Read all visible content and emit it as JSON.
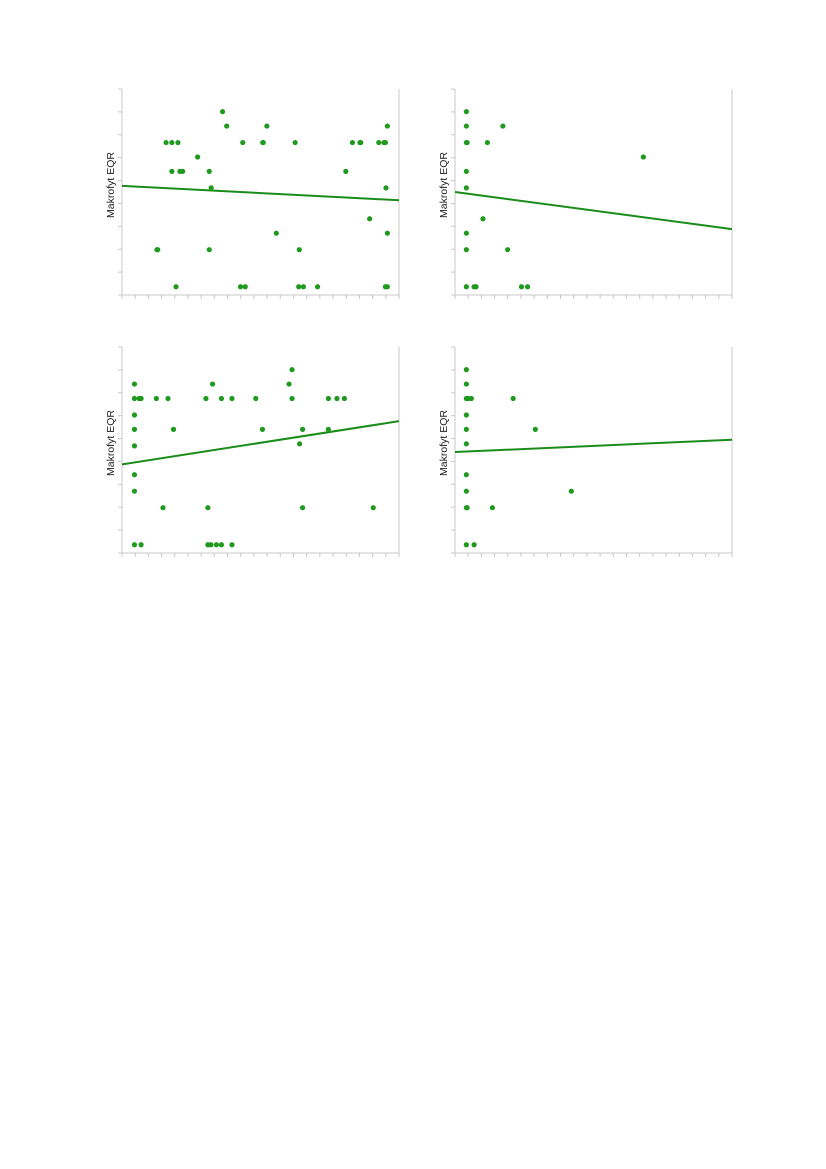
{
  "colors": {
    "points": "#1f9a1f",
    "trend": "#1a8c1a",
    "axis": "#c8c8c8"
  },
  "chart_data": [
    {
      "type": "scatter",
      "ylabel": "Makrofyt EQR",
      "xlim": [
        0,
        1
      ],
      "ylim": [
        0,
        1
      ],
      "points": [
        {
          "x": 0.126,
          "y": 0.22
        },
        {
          "x": 0.129,
          "y": 0.22
        },
        {
          "x": 0.159,
          "y": 0.74
        },
        {
          "x": 0.18,
          "y": 0.74
        },
        {
          "x": 0.202,
          "y": 0.74
        },
        {
          "x": 0.18,
          "y": 0.6
        },
        {
          "x": 0.209,
          "y": 0.6
        },
        {
          "x": 0.219,
          "y": 0.6
        },
        {
          "x": 0.195,
          "y": 0.04
        },
        {
          "x": 0.273,
          "y": 0.67
        },
        {
          "x": 0.315,
          "y": 0.6
        },
        {
          "x": 0.322,
          "y": 0.52
        },
        {
          "x": 0.315,
          "y": 0.22
        },
        {
          "x": 0.363,
          "y": 0.89
        },
        {
          "x": 0.378,
          "y": 0.82
        },
        {
          "x": 0.436,
          "y": 0.74
        },
        {
          "x": 0.508,
          "y": 0.74
        },
        {
          "x": 0.51,
          "y": 0.74
        },
        {
          "x": 0.523,
          "y": 0.82
        },
        {
          "x": 0.428,
          "y": 0.04
        },
        {
          "x": 0.445,
          "y": 0.04
        },
        {
          "x": 0.557,
          "y": 0.3
        },
        {
          "x": 0.625,
          "y": 0.74
        },
        {
          "x": 0.64,
          "y": 0.22
        },
        {
          "x": 0.638,
          "y": 0.04
        },
        {
          "x": 0.655,
          "y": 0.04
        },
        {
          "x": 0.706,
          "y": 0.04
        },
        {
          "x": 0.808,
          "y": 0.6
        },
        {
          "x": 0.832,
          "y": 0.74
        },
        {
          "x": 0.859,
          "y": 0.74
        },
        {
          "x": 0.862,
          "y": 0.74
        },
        {
          "x": 0.894,
          "y": 0.37
        },
        {
          "x": 0.927,
          "y": 0.74
        },
        {
          "x": 0.946,
          "y": 0.74
        },
        {
          "x": 0.951,
          "y": 0.74
        },
        {
          "x": 0.958,
          "y": 0.82
        },
        {
          "x": 0.953,
          "y": 0.52
        },
        {
          "x": 0.958,
          "y": 0.3
        },
        {
          "x": 0.951,
          "y": 0.04
        },
        {
          "x": 0.958,
          "y": 0.04
        }
      ],
      "trendline": {
        "x": [
          0,
          1
        ],
        "y": [
          0.53,
          0.46
        ]
      }
    },
    {
      "type": "scatter",
      "ylabel": "Makrofyt EQR",
      "xlim": [
        0,
        1
      ],
      "ylim": [
        0,
        1
      ],
      "points": [
        {
          "x": 0.041,
          "y": 0.89
        },
        {
          "x": 0.041,
          "y": 0.82
        },
        {
          "x": 0.041,
          "y": 0.74
        },
        {
          "x": 0.044,
          "y": 0.74
        },
        {
          "x": 0.041,
          "y": 0.6
        },
        {
          "x": 0.041,
          "y": 0.52
        },
        {
          "x": 0.041,
          "y": 0.3
        },
        {
          "x": 0.041,
          "y": 0.22
        },
        {
          "x": 0.041,
          "y": 0.04
        },
        {
          "x": 0.069,
          "y": 0.04
        },
        {
          "x": 0.076,
          "y": 0.04
        },
        {
          "x": 0.101,
          "y": 0.37
        },
        {
          "x": 0.117,
          "y": 0.74
        },
        {
          "x": 0.173,
          "y": 0.82
        },
        {
          "x": 0.19,
          "y": 0.22
        },
        {
          "x": 0.24,
          "y": 0.04
        },
        {
          "x": 0.262,
          "y": 0.04
        },
        {
          "x": 0.68,
          "y": 0.67
        }
      ],
      "trendline": {
        "x": [
          0,
          1
        ],
        "y": [
          0.5,
          0.32
        ]
      }
    },
    {
      "type": "scatter",
      "ylabel": "Makrofyt EQR",
      "xlim": [
        0,
        1
      ],
      "ylim": [
        0,
        1
      ],
      "points": [
        {
          "x": 0.045,
          "y": 0.82
        },
        {
          "x": 0.045,
          "y": 0.75
        },
        {
          "x": 0.045,
          "y": 0.67
        },
        {
          "x": 0.045,
          "y": 0.6
        },
        {
          "x": 0.045,
          "y": 0.52
        },
        {
          "x": 0.045,
          "y": 0.38
        },
        {
          "x": 0.045,
          "y": 0.3
        },
        {
          "x": 0.045,
          "y": 0.04
        },
        {
          "x": 0.062,
          "y": 0.75
        },
        {
          "x": 0.069,
          "y": 0.75
        },
        {
          "x": 0.069,
          "y": 0.04
        },
        {
          "x": 0.124,
          "y": 0.75
        },
        {
          "x": 0.148,
          "y": 0.22
        },
        {
          "x": 0.166,
          "y": 0.75
        },
        {
          "x": 0.186,
          "y": 0.6
        },
        {
          "x": 0.303,
          "y": 0.75
        },
        {
          "x": 0.31,
          "y": 0.22
        },
        {
          "x": 0.31,
          "y": 0.04
        },
        {
          "x": 0.321,
          "y": 0.04
        },
        {
          "x": 0.327,
          "y": 0.82
        },
        {
          "x": 0.341,
          "y": 0.04
        },
        {
          "x": 0.359,
          "y": 0.75
        },
        {
          "x": 0.359,
          "y": 0.04
        },
        {
          "x": 0.397,
          "y": 0.75
        },
        {
          "x": 0.397,
          "y": 0.04
        },
        {
          "x": 0.483,
          "y": 0.75
        },
        {
          "x": 0.507,
          "y": 0.6
        },
        {
          "x": 0.603,
          "y": 0.82
        },
        {
          "x": 0.614,
          "y": 0.89
        },
        {
          "x": 0.614,
          "y": 0.75
        },
        {
          "x": 0.641,
          "y": 0.53
        },
        {
          "x": 0.652,
          "y": 0.6
        },
        {
          "x": 0.652,
          "y": 0.22
        },
        {
          "x": 0.745,
          "y": 0.75
        },
        {
          "x": 0.745,
          "y": 0.6
        },
        {
          "x": 0.776,
          "y": 0.75
        },
        {
          "x": 0.803,
          "y": 0.75
        },
        {
          "x": 0.907,
          "y": 0.22
        }
      ],
      "trendline": {
        "x": [
          0,
          1
        ],
        "y": [
          0.43,
          0.64
        ]
      }
    },
    {
      "type": "scatter",
      "ylabel": "Makrofyt EQR",
      "xlim": [
        0,
        1
      ],
      "ylim": [
        0,
        1
      ],
      "points": [
        {
          "x": 0.041,
          "y": 0.89
        },
        {
          "x": 0.041,
          "y": 0.82
        },
        {
          "x": 0.041,
          "y": 0.75
        },
        {
          "x": 0.048,
          "y": 0.75
        },
        {
          "x": 0.059,
          "y": 0.75
        },
        {
          "x": 0.041,
          "y": 0.67
        },
        {
          "x": 0.041,
          "y": 0.6
        },
        {
          "x": 0.041,
          "y": 0.53
        },
        {
          "x": 0.041,
          "y": 0.38
        },
        {
          "x": 0.041,
          "y": 0.3
        },
        {
          "x": 0.041,
          "y": 0.22
        },
        {
          "x": 0.044,
          "y": 0.22
        },
        {
          "x": 0.041,
          "y": 0.04
        },
        {
          "x": 0.069,
          "y": 0.04
        },
        {
          "x": 0.135,
          "y": 0.22
        },
        {
          "x": 0.21,
          "y": 0.75
        },
        {
          "x": 0.29,
          "y": 0.6
        },
        {
          "x": 0.42,
          "y": 0.3
        }
      ],
      "trendline": {
        "x": [
          0,
          1
        ],
        "y": [
          0.49,
          0.55
        ]
      }
    }
  ]
}
